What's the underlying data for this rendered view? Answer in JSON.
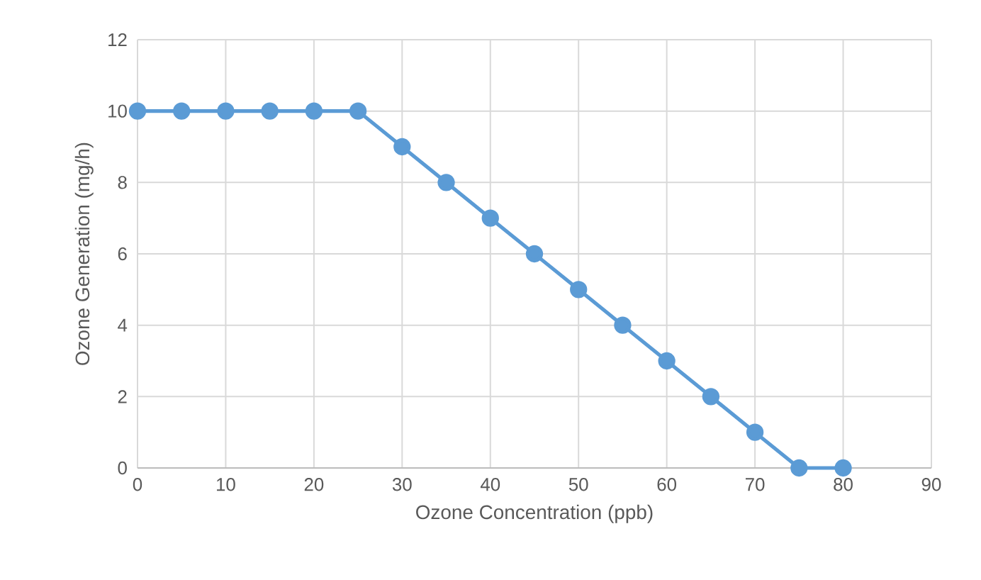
{
  "chart_data": {
    "type": "line",
    "xlabel": "Ozone Concentration (ppb)",
    "ylabel": "Ozone Generation (mg/h)",
    "x": [
      0,
      5,
      10,
      15,
      20,
      25,
      30,
      35,
      40,
      45,
      50,
      55,
      60,
      65,
      70,
      75,
      80
    ],
    "series": [
      {
        "color": "#5b9bd5",
        "values": [
          10,
          10,
          10,
          10,
          10,
          10,
          9,
          8,
          7,
          6,
          5,
          4,
          3,
          2,
          1,
          0,
          0
        ]
      }
    ],
    "xlim": [
      0,
      90
    ],
    "ylim": [
      0,
      12
    ],
    "xticks": [
      0,
      10,
      20,
      30,
      40,
      50,
      60,
      70,
      80,
      90
    ],
    "yticks": [
      0,
      2,
      4,
      6,
      8,
      10,
      12
    ],
    "grid": true,
    "marker": "circle",
    "line_style": "solid"
  }
}
